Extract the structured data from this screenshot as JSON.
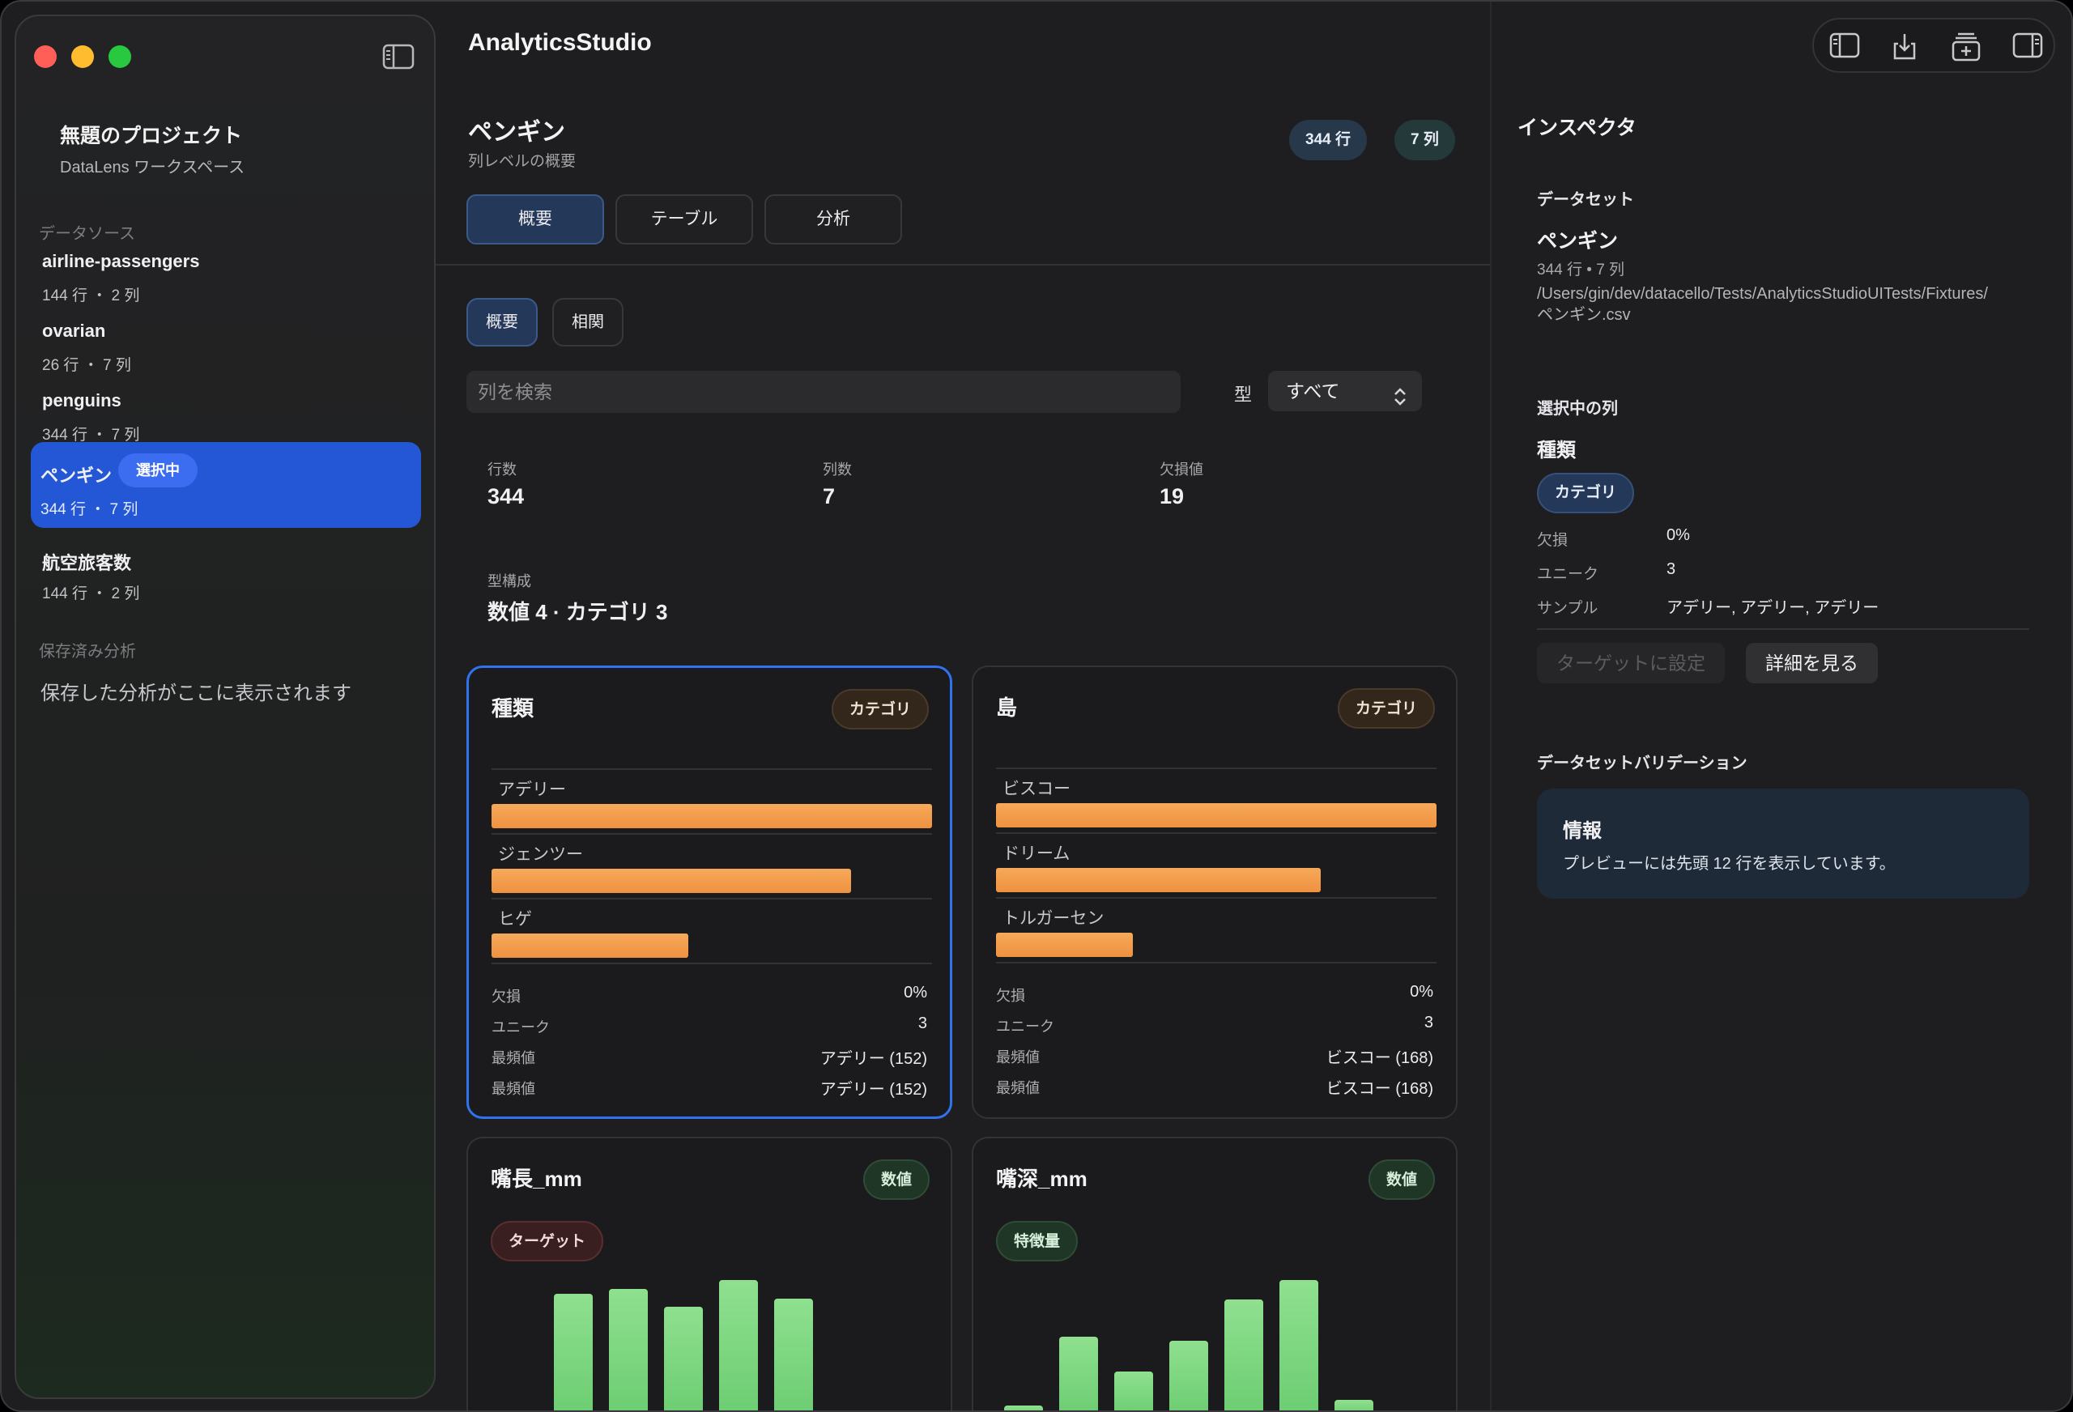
{
  "app_title": "AnalyticsStudio",
  "sidebar": {
    "project_title": "無題のプロジェクト",
    "project_subtitle": "DataLens ワークスペース",
    "sources_header": "データソース",
    "sources": [
      {
        "name": "airline-passengers",
        "meta": "144 行 ・ 2 列"
      },
      {
        "name": "ovarian",
        "meta": "26 行 ・ 7 列"
      },
      {
        "name": "penguins",
        "meta": "344 行 ・ 7 列"
      },
      {
        "name": "ペンギン",
        "meta": "344 行 ・ 7 列",
        "badge": "選択中"
      },
      {
        "name": "航空旅客数",
        "meta": "144 行 ・ 2 列"
      }
    ],
    "saved_header": "保存済み分析",
    "saved_empty": "保存した分析がここに表示されます"
  },
  "main": {
    "title": "ペンギン",
    "subtitle": "列レベルの概要",
    "rows_pill": "344 行",
    "cols_pill": "7 列",
    "tabs": [
      {
        "label": "概要"
      },
      {
        "label": "テーブル"
      },
      {
        "label": "分析"
      }
    ],
    "subtabs": [
      {
        "label": "概要"
      },
      {
        "label": "相関"
      }
    ],
    "search_placeholder": "列を検索",
    "type_label": "型",
    "type_value": "すべて",
    "stats": {
      "rows_label": "行数",
      "rows_value": "344",
      "cols_label": "列数",
      "cols_value": "7",
      "missing_label": "欠損値",
      "missing_value": "19",
      "composition_label": "型構成",
      "composition_value": "数値 4 · カテゴリ 3"
    },
    "cards": [
      {
        "title": "種類",
        "type": "カテゴリ",
        "categories": [
          {
            "label": "アデリー",
            "fraction": 1.0
          },
          {
            "label": "ジェンツー",
            "fraction": 0.816
          },
          {
            "label": "ヒゲ",
            "fraction": 0.447
          }
        ],
        "kv": [
          {
            "label": "欠損",
            "value": "0%"
          },
          {
            "label": "ユニーク",
            "value": "3"
          },
          {
            "label": "最頻値",
            "value": "アデリー (152)"
          },
          {
            "label": "最頻値",
            "value": "アデリー (152)"
          }
        ]
      },
      {
        "title": "島",
        "type": "カテゴリ",
        "categories": [
          {
            "label": "ビスコー",
            "fraction": 1.0
          },
          {
            "label": "ドリーム",
            "fraction": 0.738
          },
          {
            "label": "トルガーセン",
            "fraction": 0.31
          }
        ],
        "kv": [
          {
            "label": "欠損",
            "value": "0%"
          },
          {
            "label": "ユニーク",
            "value": "3"
          },
          {
            "label": "最頻値",
            "value": "ビスコー (168)"
          },
          {
            "label": "最頻値",
            "value": "ビスコー (168)"
          }
        ]
      },
      {
        "title": "嘴長_mm",
        "type": "数値",
        "role": "ターゲット",
        "histogram": [
          0.88,
          0.92,
          0.79,
          0.98,
          0.85
        ]
      },
      {
        "title": "嘴深_mm",
        "type": "数値",
        "role": "特徴量",
        "histogram": [
          0.07,
          0.57,
          0.32,
          0.54,
          0.84,
          0.98,
          0.11
        ]
      }
    ]
  },
  "inspector": {
    "title": "インスペクタ",
    "dataset_header": "データセット",
    "dataset_name": "ペンギン",
    "dataset_meta": "344 行 • 7 列",
    "dataset_path": "/Users/gin/dev/datacello/Tests/AnalyticsStudioUITests/Fixtures/ペンギン.csv",
    "selected_header": "選択中の列",
    "selected_name": "種類",
    "selected_type": "カテゴリ",
    "kv": [
      {
        "label": "欠損",
        "value": "0%"
      },
      {
        "label": "ユニーク",
        "value": "3"
      },
      {
        "label": "サンプル",
        "value": "アデリー, アデリー, アデリー"
      }
    ],
    "set_target_label": "ターゲットに設定",
    "details_label": "詳細を見る",
    "validation_header": "データセットバリデーション",
    "info_title": "情報",
    "info_message": "プレビューには先頭 12 行を表示しています。"
  },
  "colors": {
    "accent": "#2457d6",
    "category_bar": "#f09a48",
    "histogram_bar": "#7dd67f",
    "selected_card_border": "#2f74ee"
  },
  "icons": [
    "sidebar-toggle-icon",
    "download-icon",
    "add-page-icon",
    "inspector-toggle-icon",
    "chevron-updown-icon"
  ]
}
